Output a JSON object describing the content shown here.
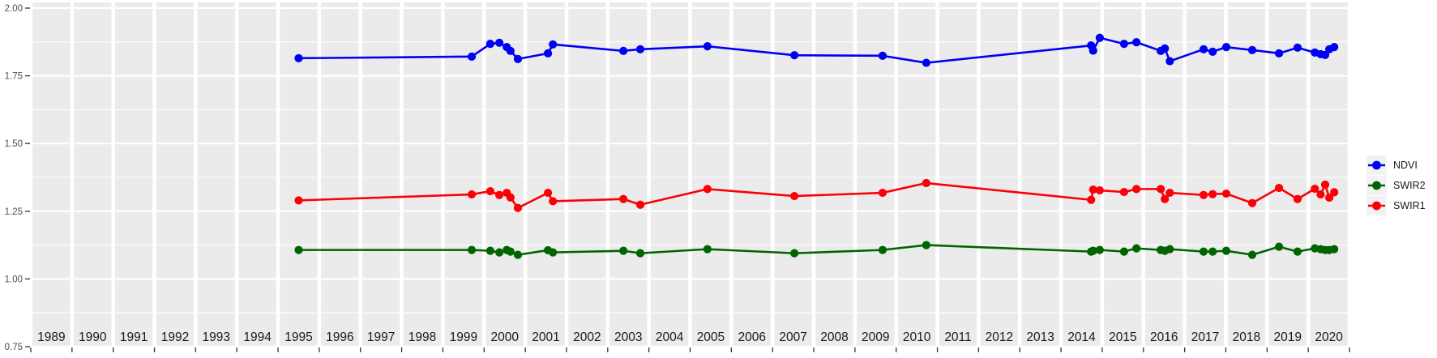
{
  "chart_data": {
    "type": "line",
    "title": "",
    "xlabel": "",
    "ylabel": "",
    "xlim": [
      1989,
      2021
    ],
    "ylim": [
      0.75,
      2.0
    ],
    "grid": true,
    "legend_position": "right",
    "x_tick_year_labels": [
      "1989",
      "1990",
      "1991",
      "1992",
      "1993",
      "1994",
      "1995",
      "1996",
      "1997",
      "1998",
      "1999",
      "2000",
      "2001",
      "2002",
      "2003",
      "2004",
      "2005",
      "2006",
      "2007",
      "2008",
      "2009",
      "2010",
      "2011",
      "2012",
      "2013",
      "2014",
      "2015",
      "2016",
      "2017",
      "2018",
      "2019",
      "2020"
    ],
    "y_major_ticks": [
      {
        "value": 0.75,
        "label": "0.75"
      },
      {
        "value": 1.0,
        "label": "1.00"
      },
      {
        "value": 1.25,
        "label": "1.25"
      },
      {
        "value": 1.5,
        "label": "1.50"
      },
      {
        "value": 1.75,
        "label": "1.75"
      },
      {
        "value": 2.0,
        "label": "2.00"
      }
    ],
    "y_minor_values": [
      0.875,
      1.125,
      1.375,
      1.625,
      1.875
    ],
    "x": [
      1995.5,
      1999.7,
      2000.15,
      2000.37,
      2000.55,
      2000.64,
      2000.82,
      2001.55,
      2001.67,
      2003.38,
      2003.79,
      2005.42,
      2007.53,
      2009.67,
      2010.73,
      2014.73,
      2014.78,
      2014.94,
      2015.53,
      2015.83,
      2016.42,
      2016.52,
      2016.64,
      2017.46,
      2017.68,
      2018.01,
      2018.64,
      2019.29,
      2019.74,
      2020.16,
      2020.3,
      2020.41,
      2020.51,
      2020.63
    ],
    "series": [
      {
        "name": "NDVI",
        "color": "#0000f5",
        "values": [
          1.815,
          1.821,
          1.868,
          1.872,
          1.856,
          1.842,
          1.812,
          1.833,
          1.866,
          1.842,
          1.848,
          1.859,
          1.826,
          1.824,
          1.798,
          1.862,
          1.843,
          1.89,
          1.868,
          1.874,
          1.842,
          1.851,
          1.804,
          1.848,
          1.839,
          1.856,
          1.845,
          1.833,
          1.854,
          1.836,
          1.83,
          1.827,
          1.848,
          1.856
        ]
      },
      {
        "name": "SWIR2",
        "color": "#006400",
        "values": [
          1.107,
          1.107,
          1.104,
          1.098,
          1.107,
          1.101,
          1.089,
          1.106,
          1.098,
          1.104,
          1.095,
          1.11,
          1.095,
          1.107,
          1.125,
          1.101,
          1.104,
          1.107,
          1.101,
          1.113,
          1.107,
          1.104,
          1.11,
          1.101,
          1.101,
          1.104,
          1.089,
          1.119,
          1.101,
          1.113,
          1.11,
          1.107,
          1.107,
          1.11
        ]
      },
      {
        "name": "SWIR1",
        "color": "#fb0006",
        "values": [
          1.29,
          1.312,
          1.324,
          1.31,
          1.318,
          1.301,
          1.262,
          1.318,
          1.287,
          1.295,
          1.274,
          1.332,
          1.306,
          1.318,
          1.354,
          1.292,
          1.33,
          1.327,
          1.321,
          1.332,
          1.332,
          1.295,
          1.318,
          1.31,
          1.313,
          1.315,
          1.28,
          1.336,
          1.295,
          1.333,
          1.312,
          1.348,
          1.3,
          1.32
        ]
      }
    ]
  },
  "legend": {
    "items": [
      {
        "label": "NDVI",
        "color": "#0000f5"
      },
      {
        "label": "SWIR2",
        "color": "#006400"
      },
      {
        "label": "SWIR1",
        "color": "#fb0006"
      }
    ]
  },
  "colors": {
    "panel_bg": "#ebebeb",
    "grid_major": "#ffffff",
    "grid_minor": "#ffffff",
    "axis_tick": "#333333",
    "y_label_text": "#4d4d4d",
    "year_label_text": "#1a1a1a",
    "legend_key_bg": "#f2f2f2",
    "page_bg": "#ffffff"
  }
}
